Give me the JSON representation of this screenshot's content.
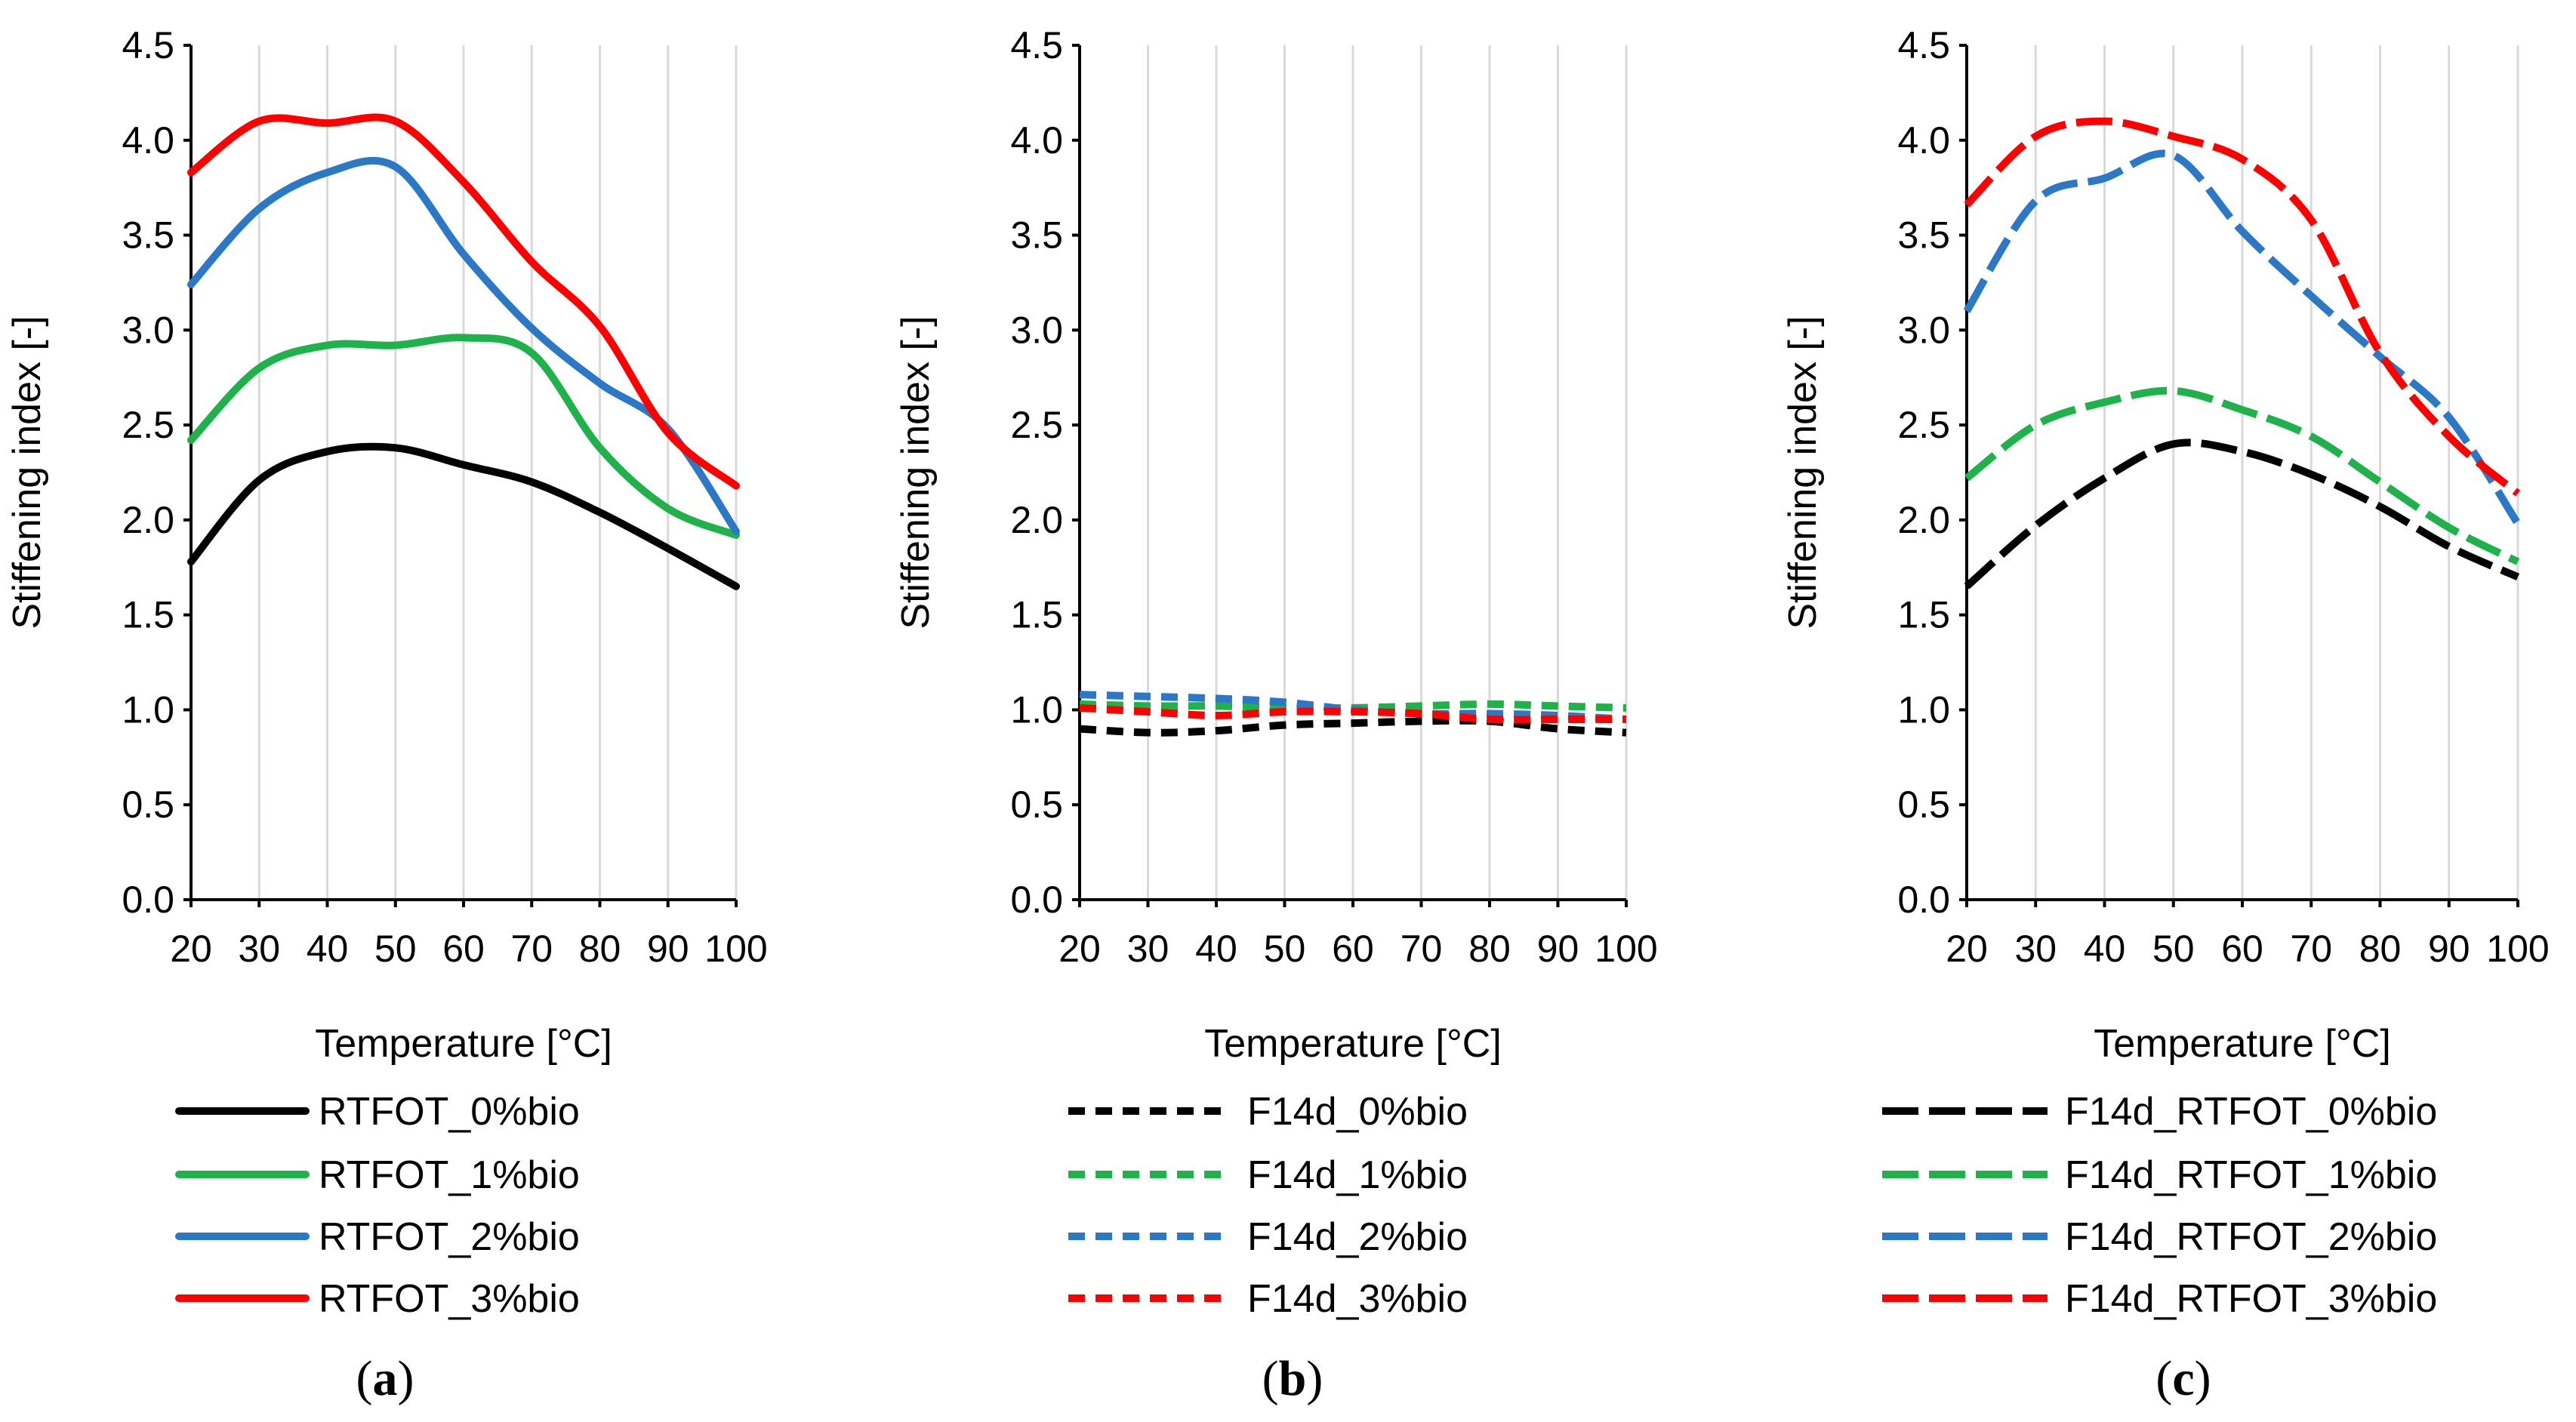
{
  "colors": {
    "0%bio": "#000000",
    "1%bio": "#1FB24A",
    "2%bio": "#2A78C6",
    "3%bio": "#FF0000",
    "gridline": "#D9D9D9",
    "axis": "#000000"
  },
  "chart_data": [
    {
      "type": "line",
      "panel": "a",
      "caption_open": "(",
      "caption_letter": "a",
      "caption_close": ")",
      "xlabel": "Temperature [°C]",
      "ylabel": "Stiffening index [-]",
      "xlim": [
        20,
        100
      ],
      "ylim": [
        0.0,
        4.5
      ],
      "x_ticks": [
        "20",
        "30",
        "40",
        "50",
        "60",
        "70",
        "80",
        "90",
        "100"
      ],
      "y_ticks": [
        "0.0",
        "0.5",
        "1.0",
        "1.5",
        "2.0",
        "2.5",
        "3.0",
        "3.5",
        "4.0",
        "4.5"
      ],
      "grid": "vertical",
      "line_style": "solid",
      "legend_position": "below",
      "series": [
        {
          "name": "RTFOT_0%bio",
          "color_key": "0%bio",
          "x": [
            20,
            30,
            40,
            50,
            60,
            70,
            80,
            90,
            100
          ],
          "values": [
            1.78,
            2.21,
            2.36,
            2.38,
            2.29,
            2.2,
            2.04,
            1.85,
            1.65
          ]
        },
        {
          "name": "RTFOT_1%bio",
          "color_key": "1%bio",
          "x": [
            20,
            30,
            40,
            50,
            60,
            70,
            80,
            90,
            100
          ],
          "values": [
            2.42,
            2.8,
            2.92,
            2.92,
            2.96,
            2.88,
            2.38,
            2.06,
            1.92
          ]
        },
        {
          "name": "RTFOT_2%bio",
          "color_key": "2%bio",
          "x": [
            20,
            30,
            40,
            50,
            60,
            70,
            80,
            90,
            100
          ],
          "values": [
            3.24,
            3.64,
            3.83,
            3.86,
            3.4,
            3.01,
            2.72,
            2.48,
            1.94
          ]
        },
        {
          "name": "RTFOT_3%bio",
          "color_key": "3%bio",
          "x": [
            20,
            30,
            40,
            50,
            60,
            70,
            80,
            90,
            100
          ],
          "values": [
            3.83,
            4.1,
            4.09,
            4.1,
            3.78,
            3.36,
            3.02,
            2.46,
            2.18
          ]
        }
      ]
    },
    {
      "type": "line",
      "panel": "b",
      "caption_open": "(",
      "caption_letter": "b",
      "caption_close": ")",
      "xlabel": "Temperature [°C]",
      "ylabel": "Stiffening index [-]",
      "xlim": [
        20,
        100
      ],
      "ylim": [
        0.0,
        4.5
      ],
      "x_ticks": [
        "20",
        "30",
        "40",
        "50",
        "60",
        "70",
        "80",
        "90",
        "100"
      ],
      "y_ticks": [
        "0.0",
        "0.5",
        "1.0",
        "1.5",
        "2.0",
        "2.5",
        "3.0",
        "3.5",
        "4.0",
        "4.5"
      ],
      "grid": "vertical",
      "line_style": "short-dash",
      "legend_position": "below",
      "series": [
        {
          "name": "F14d_0%bio",
          "color_key": "0%bio",
          "x": [
            20,
            30,
            40,
            50,
            60,
            70,
            80,
            90,
            100
          ],
          "values": [
            0.9,
            0.88,
            0.89,
            0.92,
            0.93,
            0.94,
            0.94,
            0.9,
            0.88
          ]
        },
        {
          "name": "F14d_1%bio",
          "color_key": "1%bio",
          "x": [
            20,
            30,
            40,
            50,
            60,
            70,
            80,
            90,
            100
          ],
          "values": [
            1.03,
            1.02,
            1.02,
            1.01,
            1.01,
            1.02,
            1.03,
            1.02,
            1.01
          ]
        },
        {
          "name": "F14d_2%bio",
          "color_key": "2%bio",
          "x": [
            20,
            30,
            40,
            50,
            60,
            70,
            80,
            90,
            100
          ],
          "values": [
            1.08,
            1.07,
            1.06,
            1.04,
            1.0,
            0.98,
            0.98,
            0.97,
            0.95
          ]
        },
        {
          "name": "F14d_3%bio",
          "color_key": "3%bio",
          "x": [
            20,
            30,
            40,
            50,
            60,
            70,
            80,
            90,
            100
          ],
          "values": [
            1.01,
            0.99,
            0.97,
            0.99,
            0.99,
            0.98,
            0.95,
            0.95,
            0.95
          ]
        }
      ]
    },
    {
      "type": "line",
      "panel": "c",
      "caption_open": "(",
      "caption_letter": "c",
      "caption_close": ")",
      "xlabel": "Temperature [°C]",
      "ylabel": "Stiffening index [-]",
      "xlim": [
        20,
        100
      ],
      "ylim": [
        0.0,
        4.5
      ],
      "x_ticks": [
        "20",
        "30",
        "40",
        "50",
        "60",
        "70",
        "80",
        "90",
        "100"
      ],
      "y_ticks": [
        "0.0",
        "0.5",
        "1.0",
        "1.5",
        "2.0",
        "2.5",
        "3.0",
        "3.5",
        "4.0",
        "4.5"
      ],
      "grid": "vertical",
      "line_style": "long-dash",
      "legend_position": "below",
      "series": [
        {
          "name": "F14d_RTFOT_0%bio",
          "color_key": "0%bio",
          "x": [
            20,
            30,
            40,
            50,
            60,
            70,
            80,
            90,
            100
          ],
          "values": [
            1.65,
            1.97,
            2.22,
            2.4,
            2.36,
            2.24,
            2.07,
            1.86,
            1.7
          ]
        },
        {
          "name": "F14d_RTFOT_1%bio",
          "color_key": "1%bio",
          "x": [
            20,
            30,
            40,
            50,
            60,
            70,
            80,
            90,
            100
          ],
          "values": [
            2.22,
            2.5,
            2.62,
            2.68,
            2.58,
            2.44,
            2.2,
            1.96,
            1.78
          ]
        },
        {
          "name": "F14d_RTFOT_2%bio",
          "color_key": "2%bio",
          "x": [
            20,
            30,
            40,
            50,
            60,
            70,
            80,
            90,
            100
          ],
          "values": [
            3.1,
            3.68,
            3.8,
            3.92,
            3.52,
            3.18,
            2.86,
            2.54,
            1.98
          ]
        },
        {
          "name": "F14d_RTFOT_3%bio",
          "color_key": "3%bio",
          "x": [
            20,
            30,
            40,
            50,
            60,
            70,
            80,
            90,
            100
          ],
          "values": [
            3.66,
            4.02,
            4.1,
            4.02,
            3.9,
            3.58,
            2.88,
            2.44,
            2.14
          ]
        }
      ]
    }
  ]
}
